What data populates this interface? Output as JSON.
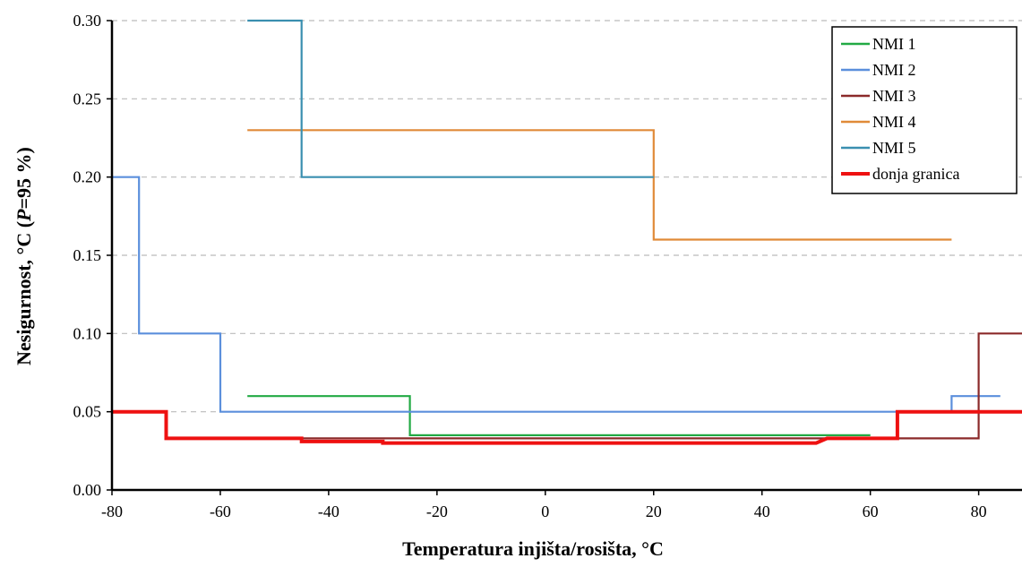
{
  "chart_data": {
    "type": "line",
    "step": true,
    "xlabel": "Temperatura injišta/rosišta, °C",
    "ylabel_parts": [
      "Nesigurnost, °C (",
      "P",
      "=95 %)"
    ],
    "xlim": [
      -80,
      88
    ],
    "ylim": [
      0,
      0.3
    ],
    "xticks": [
      -80,
      -60,
      -40,
      -20,
      0,
      20,
      40,
      60,
      80
    ],
    "xtick_labels": [
      "-80",
      "-60",
      "-40",
      "-20",
      "0",
      "20",
      "40",
      "60",
      "80"
    ],
    "yticks": [
      0,
      0.05,
      0.1,
      0.15,
      0.2,
      0.25,
      0.3
    ],
    "ytick_labels": [
      "0.00",
      "0.05",
      "0.10",
      "0.15",
      "0.20",
      "0.25",
      "0.30"
    ],
    "grid": "horizontal dashed",
    "legend_position": "top-right",
    "series": [
      {
        "name": "NMI 1",
        "color": "#22aa44",
        "points": [
          [
            -55,
            0.06
          ],
          [
            -25,
            0.06
          ],
          [
            -25,
            0.035
          ],
          [
            60,
            0.035
          ]
        ]
      },
      {
        "name": "NMI 2",
        "color": "#5b8fdc",
        "points": [
          [
            -80,
            0.2
          ],
          [
            -75,
            0.2
          ],
          [
            -75,
            0.1
          ],
          [
            -60,
            0.1
          ],
          [
            -60,
            0.05
          ],
          [
            75,
            0.05
          ],
          [
            75,
            0.06
          ],
          [
            84,
            0.06
          ]
        ]
      },
      {
        "name": "NMI 3",
        "color": "#8b2a2a",
        "points": [
          [
            -45,
            0.033
          ],
          [
            60,
            0.033
          ],
          [
            80,
            0.033
          ],
          [
            80,
            0.1
          ],
          [
            88,
            0.1
          ]
        ]
      },
      {
        "name": "NMI 4",
        "color": "#e08a38",
        "points": [
          [
            -55,
            0.23
          ],
          [
            20,
            0.23
          ],
          [
            20,
            0.16
          ],
          [
            75,
            0.16
          ]
        ]
      },
      {
        "name": "NMI 5",
        "color": "#3a8fb0",
        "points": [
          [
            -55,
            0.3
          ],
          [
            -45,
            0.3
          ],
          [
            -45,
            0.2
          ],
          [
            20,
            0.2
          ]
        ]
      },
      {
        "name": "donja granica",
        "color": "#ee1111",
        "width": 4,
        "points": [
          [
            -80,
            0.05
          ],
          [
            -70,
            0.05
          ],
          [
            -70,
            0.033
          ],
          [
            -45,
            0.033
          ],
          [
            -45,
            0.031
          ],
          [
            -30,
            0.031
          ],
          [
            -30,
            0.03
          ],
          [
            50,
            0.03
          ],
          [
            52,
            0.033
          ],
          [
            65,
            0.033
          ],
          [
            65,
            0.05
          ],
          [
            88,
            0.05
          ]
        ]
      }
    ]
  }
}
